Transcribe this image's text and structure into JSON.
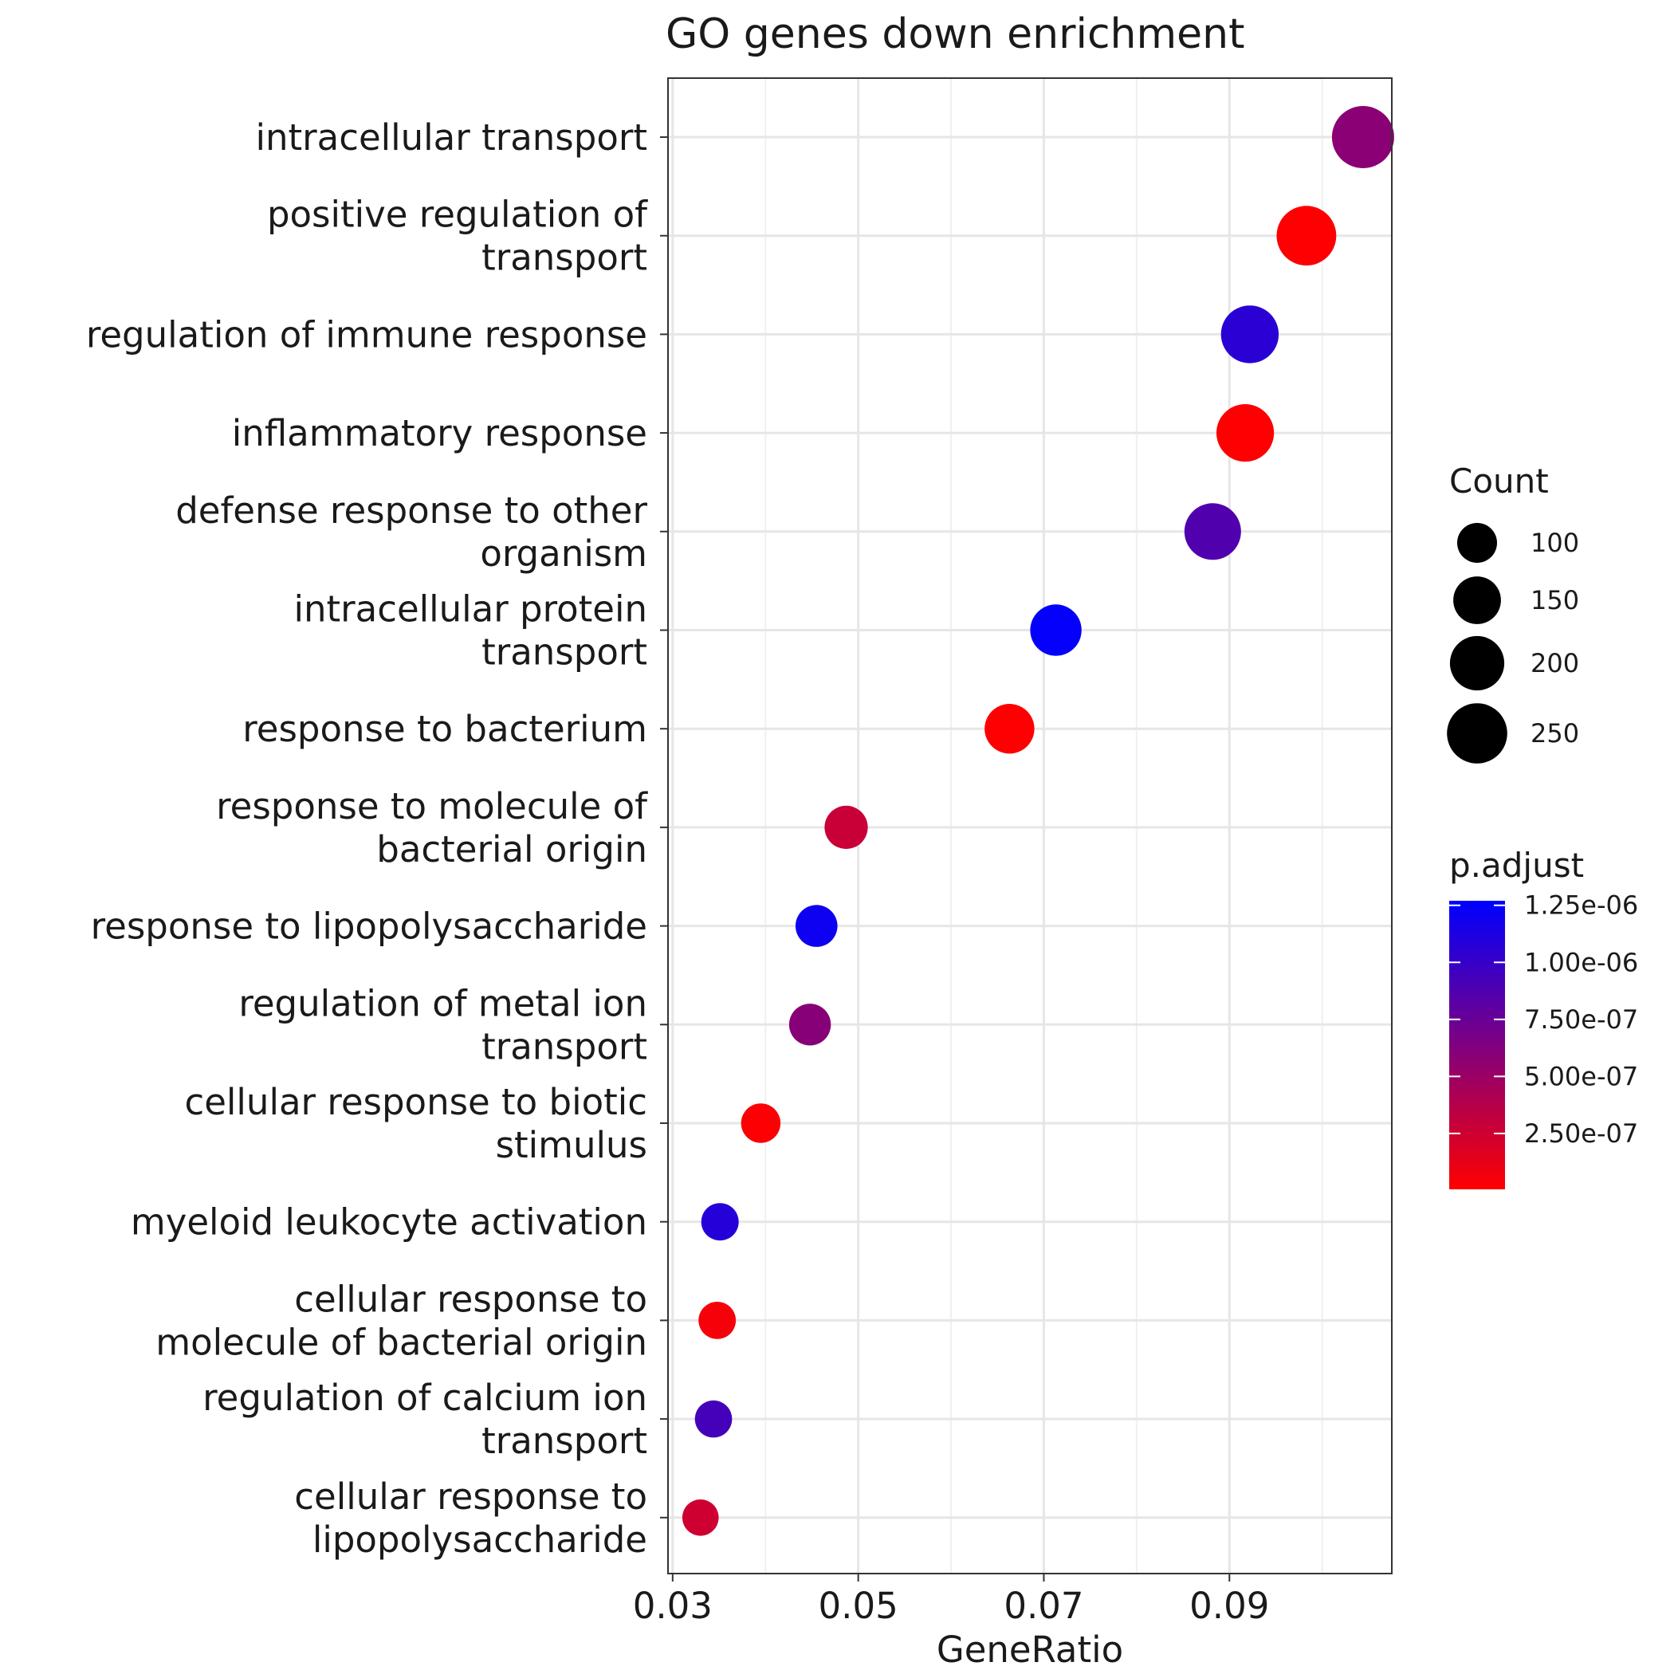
{
  "chart_data": {
    "type": "scatter",
    "title": "GO genes down enrichment",
    "xlabel": "GeneRatio",
    "ylabel": "",
    "xlim": [
      0.0295,
      0.1075
    ],
    "xticks": [
      0.03,
      0.05,
      0.07,
      0.09
    ],
    "xtick_labels": [
      "0.03",
      "0.05",
      "0.07",
      "0.09"
    ],
    "grid": true,
    "size_legend": {
      "title": "Count",
      "labels": [
        "100",
        "150",
        "200",
        "250"
      ],
      "values": [
        100,
        150,
        200,
        250
      ]
    },
    "color_legend": {
      "title": "p.adjust",
      "labels": [
        "1.25e-06",
        "1.00e-06",
        "7.50e-07",
        "5.00e-07",
        "2.50e-07"
      ],
      "values": [
        1.25e-06,
        1e-06,
        7.5e-07,
        5e-07,
        2.5e-07
      ],
      "range": [
        5e-09,
        1.27e-06
      ],
      "low_color": "#ff0000",
      "high_color": "#0000ff"
    },
    "points": [
      {
        "term": [
          "intracellular transport"
        ],
        "x": 0.1044,
        "count": 268,
        "padj": 5.8e-07
      },
      {
        "term": [
          "positive regulation of",
          "transport"
        ],
        "x": 0.0983,
        "count": 245,
        "padj": 1e-08
      },
      {
        "term": [
          "regulation of immune response"
        ],
        "x": 0.0922,
        "count": 228,
        "padj": 1.06e-06
      },
      {
        "term": [
          "inflammatory response"
        ],
        "x": 0.0917,
        "count": 226,
        "padj": 1e-08
      },
      {
        "term": [
          "defense response to other",
          "organism"
        ],
        "x": 0.0882,
        "count": 218,
        "padj": 8.7e-07
      },
      {
        "term": [
          "intracellular protein",
          "transport"
        ],
        "x": 0.0713,
        "count": 176,
        "padj": 1.25e-06
      },
      {
        "term": [
          "response to bacterium"
        ],
        "x": 0.0663,
        "count": 164,
        "padj": 1e-08
      },
      {
        "term": [
          "response to molecule of",
          "bacterial origin"
        ],
        "x": 0.0487,
        "count": 120,
        "padj": 2.8e-07
      },
      {
        "term": [
          "response to lipopolysaccharide"
        ],
        "x": 0.0455,
        "count": 112,
        "padj": 1.2e-06
      },
      {
        "term": [
          "regulation of metal ion",
          "transport"
        ],
        "x": 0.0448,
        "count": 111,
        "padj": 6e-07
      },
      {
        "term": [
          "cellular response to biotic",
          "stimulus"
        ],
        "x": 0.0395,
        "count": 97,
        "padj": 2e-08
      },
      {
        "term": [
          "myeloid leukocyte activation"
        ],
        "x": 0.0351,
        "count": 87,
        "padj": 1.08e-06
      },
      {
        "term": [
          "cellular response to",
          "molecule of bacterial origin"
        ],
        "x": 0.0348,
        "count": 86,
        "padj": 5e-08
      },
      {
        "term": [
          "regulation of calcium ion",
          "transport"
        ],
        "x": 0.0344,
        "count": 85,
        "padj": 9.3e-07
      },
      {
        "term": [
          "cellular response to",
          "lipopolysaccharide"
        ],
        "x": 0.033,
        "count": 81,
        "padj": 2.5e-07
      }
    ]
  }
}
